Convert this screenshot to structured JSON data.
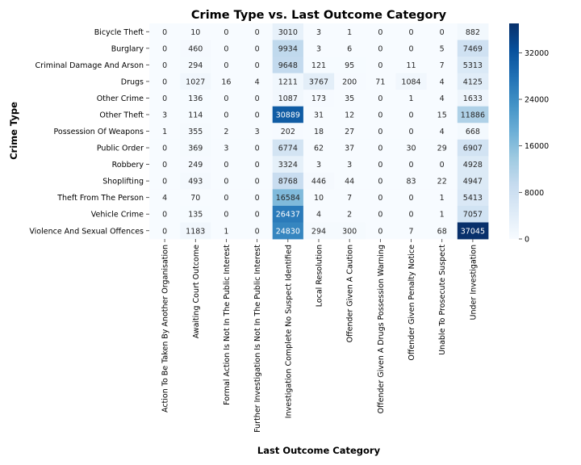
{
  "chart_data": {
    "type": "heatmap",
    "title": "Crime Type vs. Last Outcome Category",
    "xlabel": "Last Outcome Category",
    "ylabel": "Crime Type",
    "rows": [
      "Bicycle Theft",
      "Burglary",
      "Criminal Damage And Arson",
      "Drugs",
      "Other Crime",
      "Other Theft",
      "Possession Of Weapons",
      "Public Order",
      "Robbery",
      "Shoplifting",
      "Theft From The Person",
      "Vehicle Crime",
      "Violence And Sexual Offences"
    ],
    "columns": [
      "Action To Be Taken By Another Organisation",
      "Awaiting Court Outcome",
      "Formal Action Is Not In The Public Interest",
      "Further Investigation Is Not In The Public Interest",
      "Investigation Complete No Suspect Identified",
      "Local Resolution",
      "Offender Given A Caution",
      "Offender Given A Drugs Possession Warning",
      "Offender Given Penalty Notice",
      "Unable To Prosecute Suspect",
      "Under Investigation"
    ],
    "values": [
      [
        0,
        10,
        0,
        0,
        3010,
        3,
        1,
        0,
        0,
        0,
        882
      ],
      [
        0,
        460,
        0,
        0,
        9934,
        3,
        6,
        0,
        0,
        5,
        7469
      ],
      [
        0,
        294,
        0,
        0,
        9648,
        121,
        95,
        0,
        11,
        7,
        5313
      ],
      [
        0,
        1027,
        16,
        4,
        1211,
        3767,
        200,
        71,
        1084,
        4,
        4125
      ],
      [
        0,
        136,
        0,
        0,
        1087,
        173,
        35,
        0,
        1,
        4,
        1633
      ],
      [
        3,
        114,
        0,
        0,
        30889,
        31,
        12,
        0,
        0,
        15,
        11886
      ],
      [
        1,
        355,
        2,
        3,
        202,
        18,
        27,
        0,
        0,
        4,
        668
      ],
      [
        0,
        369,
        3,
        0,
        6774,
        62,
        37,
        0,
        30,
        29,
        6907
      ],
      [
        0,
        249,
        0,
        0,
        3324,
        3,
        3,
        0,
        0,
        0,
        4928
      ],
      [
        0,
        493,
        0,
        0,
        8768,
        446,
        44,
        0,
        83,
        22,
        4947
      ],
      [
        4,
        70,
        0,
        0,
        16584,
        10,
        7,
        0,
        0,
        1,
        5413
      ],
      [
        0,
        135,
        0,
        0,
        26437,
        4,
        2,
        0,
        0,
        1,
        7057
      ],
      [
        0,
        1183,
        1,
        0,
        24830,
        294,
        300,
        0,
        7,
        68,
        37045
      ]
    ],
    "color_range": [
      0,
      37045
    ],
    "colormap": "Blues",
    "colorbar_ticks": [
      0,
      8000,
      16000,
      24000,
      32000
    ],
    "colors": {
      "low": "#f7fbff",
      "high": "#08306b"
    }
  }
}
